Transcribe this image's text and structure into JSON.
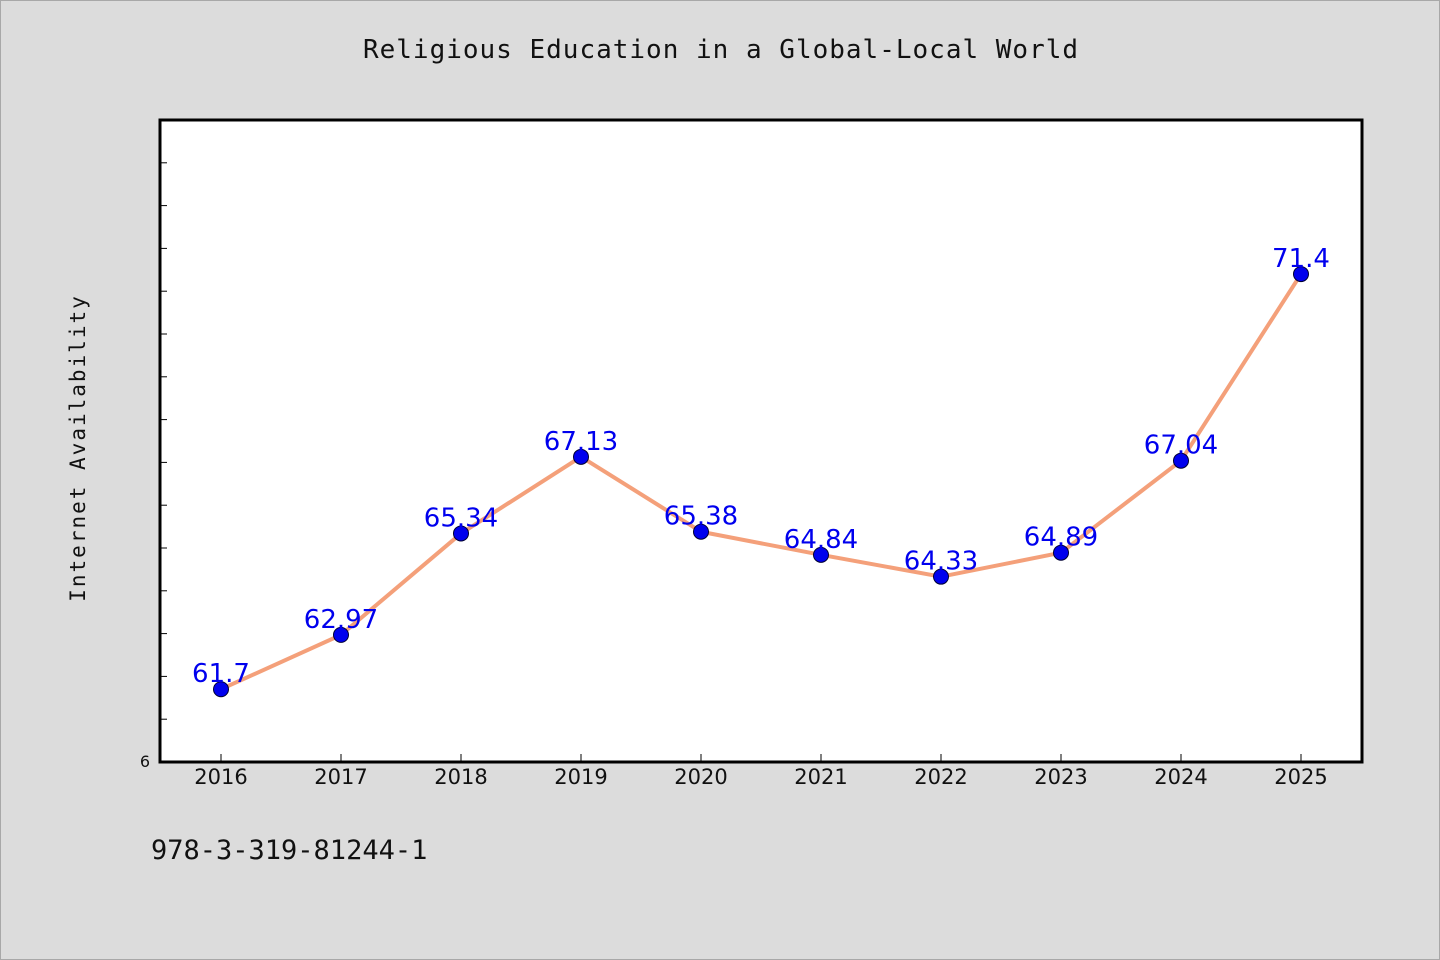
{
  "page": {
    "footer_text": "978-3-319-81244-1"
  },
  "chart_data": {
    "type": "line",
    "title": "Religious Education in a Global-Local World",
    "xlabel": "",
    "ylabel": "Internet Availability",
    "x": [
      "2016",
      "2017",
      "2018",
      "2019",
      "2020",
      "2021",
      "2022",
      "2023",
      "2024",
      "2025"
    ],
    "series": [
      {
        "values": [
          61.7,
          62.97,
          65.34,
          67.13,
          65.38,
          64.84,
          64.33,
          64.89,
          67.04,
          71.4
        ],
        "line_color": "#f4a07a",
        "marker_color": "#0000ee"
      }
    ],
    "data_labels": [
      "61.7",
      "62.97",
      "65.34",
      "67.13",
      "65.38",
      "64.84",
      "64.33",
      "64.89",
      "67.04",
      "71.4"
    ],
    "ylim": [
      60,
      75
    ],
    "y_tick_step": 1,
    "y_tick_labels_shown": [
      "6"
    ],
    "grid": false,
    "legend": "none",
    "label_color": "#0000ee"
  }
}
